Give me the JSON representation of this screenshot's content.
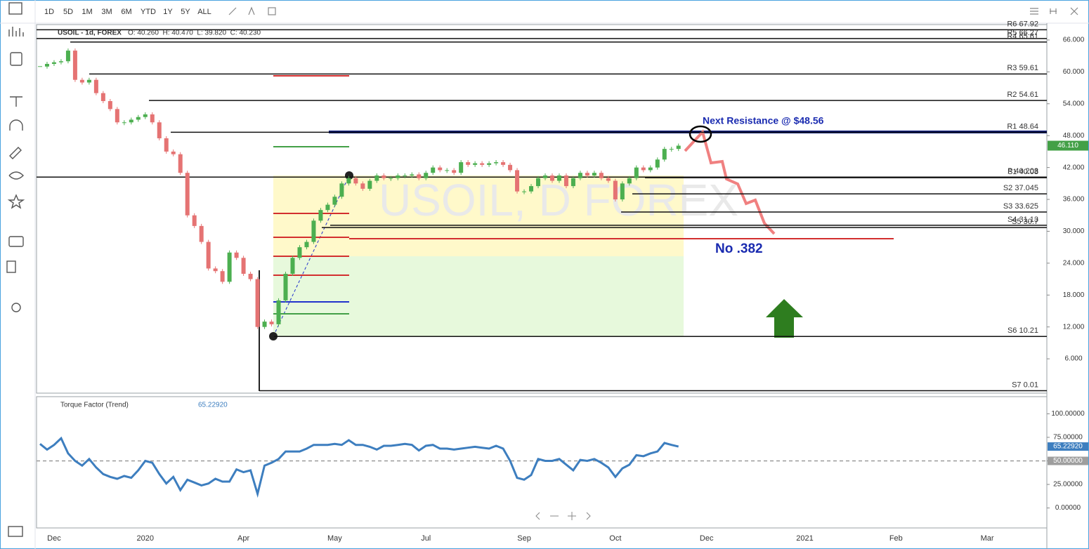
{
  "toolbar": {
    "ranges": [
      "1D",
      "5D",
      "1M",
      "3M",
      "6M",
      "YTD",
      "1Y",
      "5Y",
      "ALL"
    ]
  },
  "chart_data": [
    {
      "type": "candlestick",
      "symbol": "USOIL - 1d, FOREX",
      "ohlc": "O: 40.260  H: 40.470  L: 39.820  C: 40.230",
      "watermark": "USOIL, D FOREX",
      "up_color": "#4caf50",
      "down_color": "#e57373",
      "categories": [
        null,
        null,
        "Dec",
        null,
        null,
        null,
        null,
        null,
        null,
        null,
        null,
        null,
        null,
        null,
        null,
        "2020",
        null,
        null,
        null,
        null,
        null,
        null,
        null,
        null,
        null,
        null,
        null,
        null,
        null,
        "Apr",
        null,
        null,
        null,
        null,
        null,
        null,
        null,
        null,
        null,
        null,
        null,
        null,
        "May",
        null,
        null,
        null,
        null,
        null,
        null,
        null,
        null,
        null,
        null,
        null,
        null,
        "Jul",
        null,
        null,
        null,
        null,
        null,
        null,
        null,
        null,
        null,
        null,
        null,
        null,
        null,
        "Sep",
        null,
        null,
        null,
        null,
        null,
        null,
        null,
        null,
        null,
        null,
        null,
        null,
        "Oct",
        null,
        null,
        null,
        null,
        null,
        null,
        null,
        null,
        null,
        null,
        null,
        null,
        "Dec",
        null,
        null,
        null,
        null,
        null,
        null,
        null,
        null,
        null,
        null,
        null,
        null,
        null,
        "2021",
        null,
        null,
        null,
        null,
        null,
        null,
        null,
        null,
        null,
        null,
        null,
        null,
        "Feb",
        null,
        null,
        null,
        null,
        null,
        null,
        null,
        null,
        null,
        null,
        null,
        null,
        "Mar",
        null,
        null,
        null,
        null,
        null,
        null,
        null,
        null
      ],
      "values": [
        61,
        61.5,
        61.8,
        62,
        64,
        58.5,
        58,
        58.5,
        56,
        54.5,
        53,
        50.5,
        50.5,
        51,
        51.5,
        52,
        50.5,
        47.5,
        45,
        44.5,
        41,
        33,
        31,
        28,
        23,
        22.5,
        20.5,
        26,
        25,
        22,
        21,
        12,
        13,
        12.5,
        17,
        22,
        25,
        27,
        28,
        32,
        34,
        35,
        36.5,
        39,
        40,
        39,
        38,
        39.5,
        40.5,
        40,
        40,
        40.5,
        40.5,
        40.7,
        40,
        41,
        42,
        41.5,
        41.5,
        41,
        43,
        42.5,
        42.8,
        42.5,
        42.8,
        43,
        42.5,
        41.5,
        37.5,
        37.5,
        38.5,
        40,
        40.5,
        39.5,
        40.5,
        38.5,
        40,
        41,
        40.5,
        41,
        40,
        39.5,
        36,
        39,
        40,
        42,
        41.5,
        42,
        43.5,
        45.5,
        45.5,
        46.11,
        null,
        null,
        null,
        null,
        null,
        null,
        null,
        null,
        null,
        null,
        null,
        null,
        null,
        null,
        null,
        null,
        null,
        null,
        null,
        null,
        null,
        null,
        null,
        null,
        null,
        null,
        null,
        null,
        null,
        null,
        null,
        null,
        null,
        null,
        null,
        null,
        null,
        null,
        null,
        null,
        null,
        null,
        null,
        null,
        null,
        null,
        null,
        null,
        null,
        null,
        null,
        null
      ],
      "last_label": "46.110",
      "ylim": [
        -0.46,
        68.9
      ],
      "yticks": [
        {
          "value": 66,
          "label": "66.000"
        },
        {
          "value": 60,
          "label": "60.000"
        },
        {
          "value": 54,
          "label": "54.000"
        },
        {
          "value": 48,
          "label": "48.000"
        },
        {
          "value": 42,
          "label": "42.000"
        },
        {
          "value": 36,
          "label": "36.000"
        },
        {
          "value": 30,
          "label": "30.000"
        },
        {
          "value": 24,
          "label": "24.000"
        },
        {
          "value": 18,
          "label": "18.000"
        },
        {
          "value": 12,
          "label": "12.000"
        },
        {
          "value": 6,
          "label": "6.000"
        }
      ],
      "levels": [
        {
          "label": "R6 67.92",
          "value": 67.92
        },
        {
          "label": "R5 66.27",
          "value": 66.27
        },
        {
          "label": "R4 65.61",
          "value": 65.61
        },
        {
          "label": "R3 59.61",
          "value": 59.61
        },
        {
          "label": "R2 54.61",
          "value": 54.61
        },
        {
          "label": "R1 48.64",
          "value": 48.64
        },
        {
          "label": "P 40.203",
          "value": 40.203
        },
        {
          "label": "S1 40.08",
          "value": 40.08
        },
        {
          "label": "S2 37.045",
          "value": 37.045
        },
        {
          "label": "S3 33.625",
          "value": 33.625
        },
        {
          "label": "S4 31.13",
          "value": 31.13
        },
        {
          "label": "S5 30.7",
          "value": 30.7
        },
        {
          "label": "S6 10.21",
          "value": 10.21
        },
        {
          "label": "S7 0.01",
          "value": 0.01
        }
      ],
      "annotations": [
        {
          "text": "Next Resistance @ $48.56"
        },
        {
          "text": "No .382"
        }
      ]
    },
    {
      "type": "line",
      "title": "Torque Factor (Trend)",
      "current": "65.22920",
      "color": "#3d7ebf",
      "values": [
        68,
        62,
        67,
        74,
        58,
        50,
        45,
        52,
        43,
        36,
        33,
        31,
        34,
        32,
        40,
        50,
        48,
        36,
        26,
        33,
        19,
        30,
        27,
        24,
        26,
        31,
        28,
        28,
        41,
        38,
        40,
        15,
        45,
        48,
        52,
        60,
        60,
        60,
        63,
        67,
        67,
        67,
        68,
        67,
        72,
        67,
        67,
        65,
        62,
        66,
        66,
        67,
        68,
        67,
        61,
        66,
        67,
        63,
        63,
        62,
        63,
        64,
        65,
        64,
        63,
        66,
        63,
        50,
        32,
        30,
        35,
        52,
        50,
        50,
        52,
        46,
        40,
        51,
        50,
        52,
        48,
        43,
        33,
        42,
        46,
        56,
        55,
        58,
        60,
        69,
        67,
        65.2292,
        null,
        null,
        null,
        null,
        null,
        null,
        null,
        null,
        null,
        null,
        null,
        null,
        null,
        null,
        null,
        null,
        null,
        null,
        null,
        null,
        null,
        null,
        null,
        null,
        null,
        null,
        null,
        null,
        null,
        null,
        null,
        null,
        null,
        null,
        null,
        null,
        null,
        null,
        null,
        null,
        null,
        null,
        null,
        null,
        null,
        null,
        null,
        null,
        null,
        null,
        null,
        null
      ],
      "hline": {
        "value": 50,
        "label": "50.00000"
      },
      "ylim": [
        -21.2,
        118.2
      ],
      "yticks": [
        {
          "value": 100,
          "label": "100.00000"
        },
        {
          "value": 75,
          "label": "75.00000"
        },
        {
          "value": 50,
          "label": "50.00000"
        },
        {
          "value": 25,
          "label": "25.00000"
        },
        {
          "value": 0,
          "label": "0.00000"
        }
      ]
    }
  ]
}
